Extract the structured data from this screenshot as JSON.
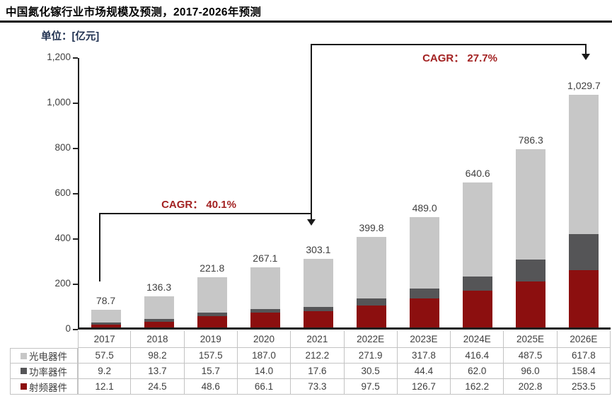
{
  "title": "中国氮化镓行业市场规模及预测，2017-2026年预测",
  "unit_label": "单位：[亿元]",
  "annotations": {
    "cagr_early": "CAGR：  40.1%",
    "cagr_late": "CAGR：  27.7%"
  },
  "colors": {
    "optoelectronic": "#c7c7c7",
    "power": "#555557",
    "rf": "#8c0f0f",
    "cagr_text": "#a32222",
    "axis": "#1f1f1f",
    "table_border": "#c3c3c3",
    "text": "#3f3f3f"
  },
  "chart_data": {
    "type": "bar",
    "stacked": true,
    "title": "中国氮化镓行业市场规模及预测，2017-2026年预测",
    "ylabel": "单位：[亿元]",
    "ylim": [
      0,
      1200
    ],
    "ytick_step": 200,
    "ytick_labels": [
      "0",
      "200",
      "400",
      "600",
      "800",
      "1,000",
      "1,200"
    ],
    "grid": false,
    "legend_position": "table-left",
    "categories": [
      "2017",
      "2018",
      "2019",
      "2020",
      "2021",
      "2022E",
      "2023E",
      "2024E",
      "2025E",
      "2026E"
    ],
    "series": [
      {
        "name": "光电器件",
        "color": "#c7c7c7",
        "values": [
          57.5,
          98.2,
          157.5,
          187.0,
          212.2,
          271.9,
          317.8,
          416.4,
          487.5,
          617.8
        ],
        "display": [
          "57.5",
          "98.2",
          "157.5",
          "187.0",
          "212.2",
          "271.9",
          "317.8",
          "416.4",
          "487.5",
          "617.8"
        ]
      },
      {
        "name": "功率器件",
        "color": "#555557",
        "values": [
          9.2,
          13.7,
          15.7,
          14.0,
          17.6,
          30.5,
          44.4,
          62.0,
          96.0,
          158.4
        ],
        "display": [
          "9.2",
          "13.7",
          "15.7",
          "14.0",
          "17.6",
          "30.5",
          "44.4",
          "62.0",
          "96.0",
          "158.4"
        ]
      },
      {
        "name": "射频器件",
        "color": "#8c0f0f",
        "values": [
          12.1,
          24.5,
          48.6,
          66.1,
          73.3,
          97.5,
          126.7,
          162.2,
          202.8,
          253.5
        ],
        "display": [
          "12.1",
          "24.5",
          "48.6",
          "66.1",
          "73.3",
          "97.5",
          "126.7",
          "162.2",
          "202.8",
          "253.5"
        ]
      }
    ],
    "totals_labels": [
      "78.7",
      "136.3",
      "221.8",
      "267.1",
      "303.1",
      "399.8",
      "489.0",
      "640.6",
      "786.3",
      "1,029.7"
    ],
    "cagr_annotations": [
      {
        "text": "CAGR：  40.1%",
        "from": "2017",
        "to": "2021"
      },
      {
        "text": "CAGR：  27.7%",
        "from": "2021",
        "to": "2026E"
      }
    ]
  }
}
